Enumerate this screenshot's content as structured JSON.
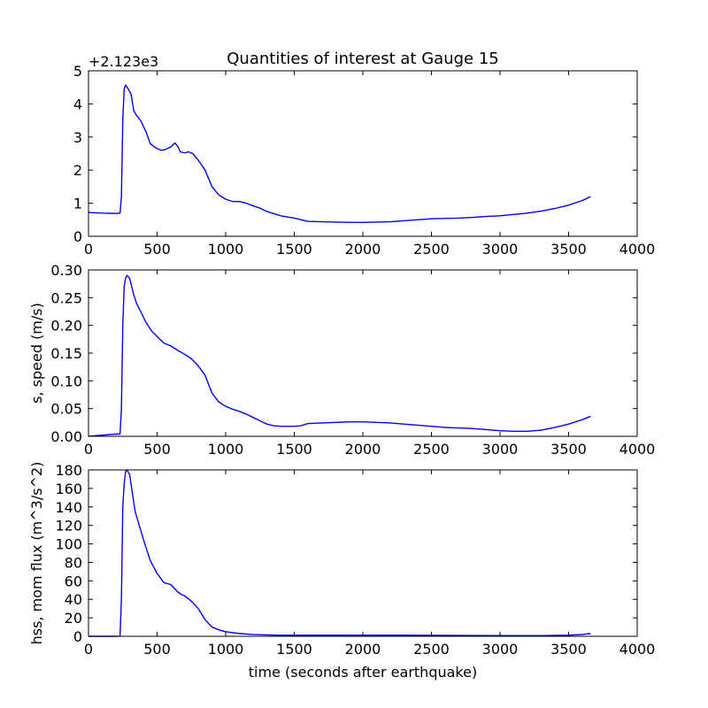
{
  "figure_title": "Quantities of interest at Gauge 15",
  "colors": {
    "series": "#0000ff",
    "axes": "#000000",
    "background": "#ffffff"
  },
  "chart_data": [
    {
      "type": "line",
      "title": "Quantities of interest at Gauge 15",
      "xlabel": "",
      "ylabel": "",
      "offset_label": "+2.123e3",
      "xlim": [
        0,
        4000
      ],
      "ylim": [
        0,
        5
      ],
      "xticks": [
        "0",
        "500",
        "1000",
        "1500",
        "2000",
        "2500",
        "3000",
        "3500",
        "4000"
      ],
      "yticks": [
        "0",
        "1",
        "2",
        "3",
        "4",
        "5"
      ],
      "grid": false,
      "series": [
        {
          "x": [
            0,
            100,
            200,
            230,
            240,
            250,
            260,
            270,
            290,
            310,
            330,
            350,
            380,
            420,
            450,
            480,
            500,
            530,
            560,
            600,
            630,
            650,
            670,
            700,
            730,
            760,
            800,
            850,
            900,
            950,
            1000,
            1050,
            1100,
            1150,
            1200,
            1250,
            1300,
            1400,
            1500,
            1550,
            1600,
            1700,
            1800,
            1900,
            2000,
            2100,
            2200,
            2300,
            2400,
            2500,
            2600,
            2700,
            2800,
            2900,
            3000,
            3100,
            3200,
            3300,
            3400,
            3500,
            3600,
            3660
          ],
          "y": [
            0.72,
            0.7,
            0.69,
            0.7,
            1.2,
            3.5,
            4.45,
            4.57,
            4.45,
            4.3,
            3.8,
            3.65,
            3.5,
            3.15,
            2.8,
            2.7,
            2.65,
            2.6,
            2.62,
            2.7,
            2.82,
            2.72,
            2.55,
            2.52,
            2.55,
            2.5,
            2.3,
            2.0,
            1.5,
            1.25,
            1.12,
            1.05,
            1.05,
            1.0,
            0.92,
            0.85,
            0.75,
            0.62,
            0.55,
            0.5,
            0.45,
            0.44,
            0.43,
            0.42,
            0.42,
            0.43,
            0.44,
            0.47,
            0.5,
            0.53,
            0.54,
            0.55,
            0.57,
            0.6,
            0.62,
            0.66,
            0.7,
            0.76,
            0.84,
            0.94,
            1.08,
            1.2
          ]
        }
      ]
    },
    {
      "type": "line",
      "title": "",
      "xlabel": "",
      "ylabel": "s, speed (m/s)",
      "xlim": [
        0,
        4000
      ],
      "ylim": [
        0,
        0.3
      ],
      "xticks": [
        "0",
        "500",
        "1000",
        "1500",
        "2000",
        "2500",
        "3000",
        "3500",
        "4000"
      ],
      "yticks": [
        "0.00",
        "0.05",
        "0.10",
        "0.15",
        "0.20",
        "0.25",
        "0.30"
      ],
      "grid": false,
      "series": [
        {
          "x": [
            0,
            100,
            200,
            230,
            240,
            250,
            260,
            270,
            280,
            300,
            330,
            350,
            380,
            420,
            460,
            500,
            550,
            600,
            650,
            700,
            750,
            800,
            850,
            900,
            950,
            1000,
            1050,
            1100,
            1150,
            1200,
            1250,
            1300,
            1350,
            1400,
            1450,
            1500,
            1550,
            1600,
            1700,
            1800,
            1900,
            2000,
            2100,
            2200,
            2300,
            2400,
            2500,
            2600,
            2700,
            2800,
            2900,
            3000,
            3100,
            3200,
            3300,
            3400,
            3500,
            3600,
            3660
          ],
          "y": [
            0.0,
            0.002,
            0.004,
            0.004,
            0.05,
            0.2,
            0.27,
            0.285,
            0.29,
            0.285,
            0.255,
            0.24,
            0.225,
            0.205,
            0.19,
            0.18,
            0.168,
            0.163,
            0.155,
            0.148,
            0.14,
            0.127,
            0.11,
            0.078,
            0.062,
            0.054,
            0.049,
            0.045,
            0.04,
            0.034,
            0.028,
            0.022,
            0.019,
            0.018,
            0.018,
            0.018,
            0.019,
            0.023,
            0.024,
            0.025,
            0.026,
            0.026,
            0.025,
            0.024,
            0.022,
            0.02,
            0.018,
            0.016,
            0.015,
            0.014,
            0.012,
            0.01,
            0.009,
            0.009,
            0.011,
            0.016,
            0.022,
            0.03,
            0.036
          ]
        }
      ]
    },
    {
      "type": "line",
      "title": "",
      "xlabel": "time (seconds after earthquake)",
      "ylabel": "hss, mom flux (m^3/s^2)",
      "xlim": [
        0,
        4000
      ],
      "ylim": [
        0,
        180
      ],
      "xticks": [
        "0",
        "500",
        "1000",
        "1500",
        "2000",
        "2500",
        "3000",
        "3500",
        "4000"
      ],
      "yticks": [
        "0",
        "20",
        "40",
        "60",
        "80",
        "100",
        "120",
        "140",
        "160",
        "180"
      ],
      "grid": false,
      "series": [
        {
          "x": [
            0,
            100,
            200,
            230,
            240,
            250,
            260,
            270,
            280,
            300,
            320,
            340,
            360,
            400,
            450,
            500,
            550,
            600,
            650,
            680,
            700,
            750,
            800,
            850,
            900,
            950,
            1000,
            1050,
            1100,
            1200,
            1300,
            1400,
            1500,
            1700,
            2000,
            2300,
            2600,
            3000,
            3300,
            3500,
            3600,
            3660
          ],
          "y": [
            0,
            0,
            0,
            0.2,
            40,
            140,
            165,
            178,
            180,
            175,
            155,
            135,
            125,
            105,
            82,
            68,
            58,
            56,
            48,
            45,
            44,
            38,
            30,
            18,
            10,
            7,
            5,
            4,
            3,
            2,
            1.5,
            1.2,
            1.2,
            1.2,
            1.2,
            1.2,
            1.0,
            0.8,
            0.8,
            1.2,
            2.0,
            3.0
          ]
        }
      ]
    }
  ]
}
